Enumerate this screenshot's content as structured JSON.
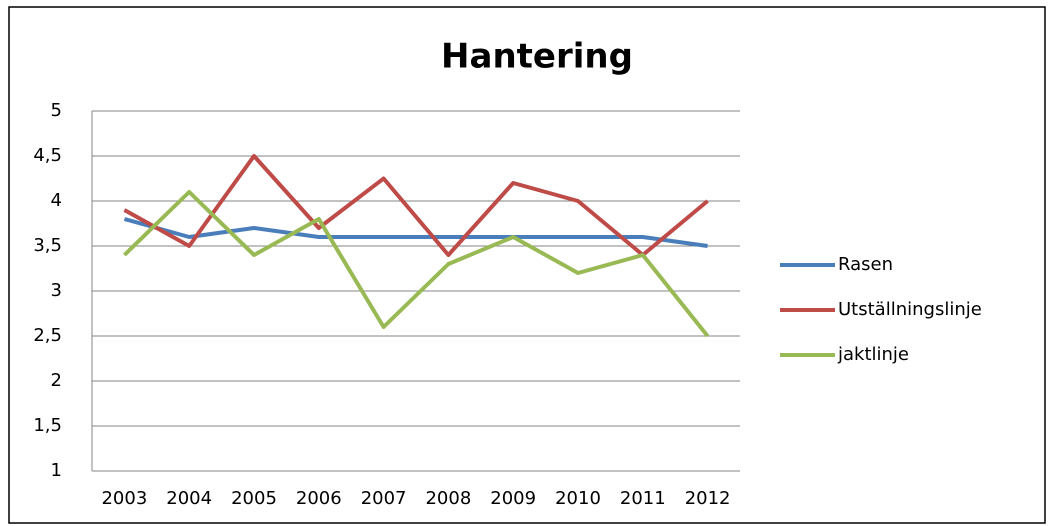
{
  "chart_data": {
    "type": "line",
    "title": "Hantering",
    "categories": [
      "2003",
      "2004",
      "2005",
      "2006",
      "2007",
      "2008",
      "2009",
      "2010",
      "2011",
      "2012"
    ],
    "series": [
      {
        "name": "Rasen",
        "color": "#4a7ebb",
        "values": [
          3.8,
          3.6,
          3.7,
          3.6,
          3.6,
          3.6,
          3.6,
          3.6,
          3.6,
          3.5
        ]
      },
      {
        "name": "Utställningslinje",
        "color": "#be4b48",
        "values": [
          3.9,
          3.5,
          4.5,
          3.7,
          4.25,
          3.4,
          4.2,
          4.0,
          3.4,
          4.0
        ]
      },
      {
        "name": "jaktlinje",
        "color": "#98b954",
        "values": [
          3.4,
          4.1,
          3.4,
          3.8,
          2.6,
          3.3,
          3.6,
          3.2,
          3.4,
          2.5
        ]
      }
    ],
    "ylim": [
      1,
      5
    ],
    "yticks": [
      1,
      {
        "value": 1.5,
        "label": "1,5"
      },
      2,
      {
        "value": 2.5,
        "label": "2,5"
      },
      3,
      {
        "value": 3.5,
        "label": "3,5"
      },
      4,
      {
        "value": 4.5,
        "label": "4,5"
      },
      5
    ],
    "grid": true,
    "legend": "right"
  }
}
